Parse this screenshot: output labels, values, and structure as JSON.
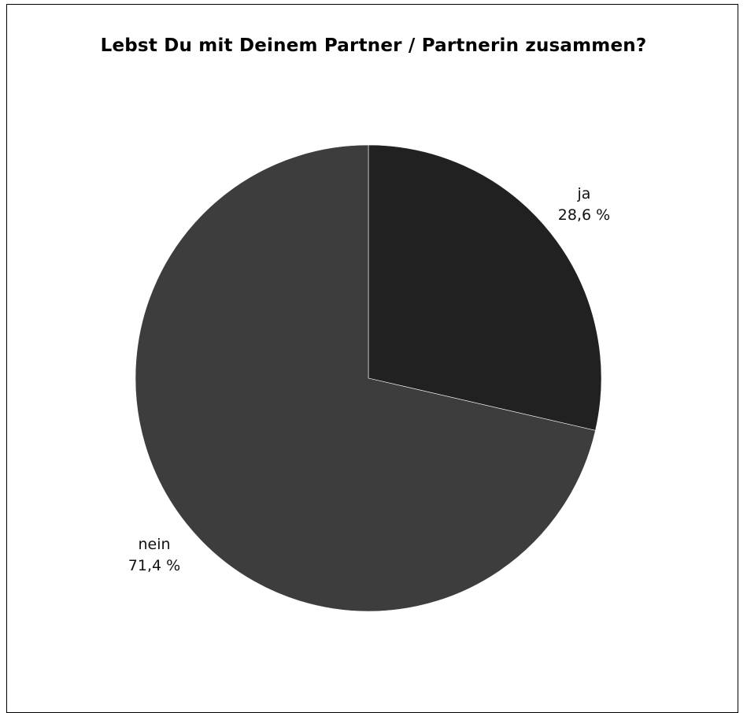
{
  "chart_data": {
    "type": "pie",
    "title": "Lebst Du mit Deinem Partner / Partnerin zusammen?",
    "slices": [
      {
        "label": "ja",
        "value": 28.6,
        "value_text": "28,6 %",
        "color": "#212121"
      },
      {
        "label": "nein",
        "value": 71.4,
        "value_text": "71,4 %",
        "color": "#3d3d3d"
      }
    ],
    "start_angle": "12 o'clock",
    "direction": "clockwise",
    "legend": "none",
    "labels": "outside slices"
  }
}
